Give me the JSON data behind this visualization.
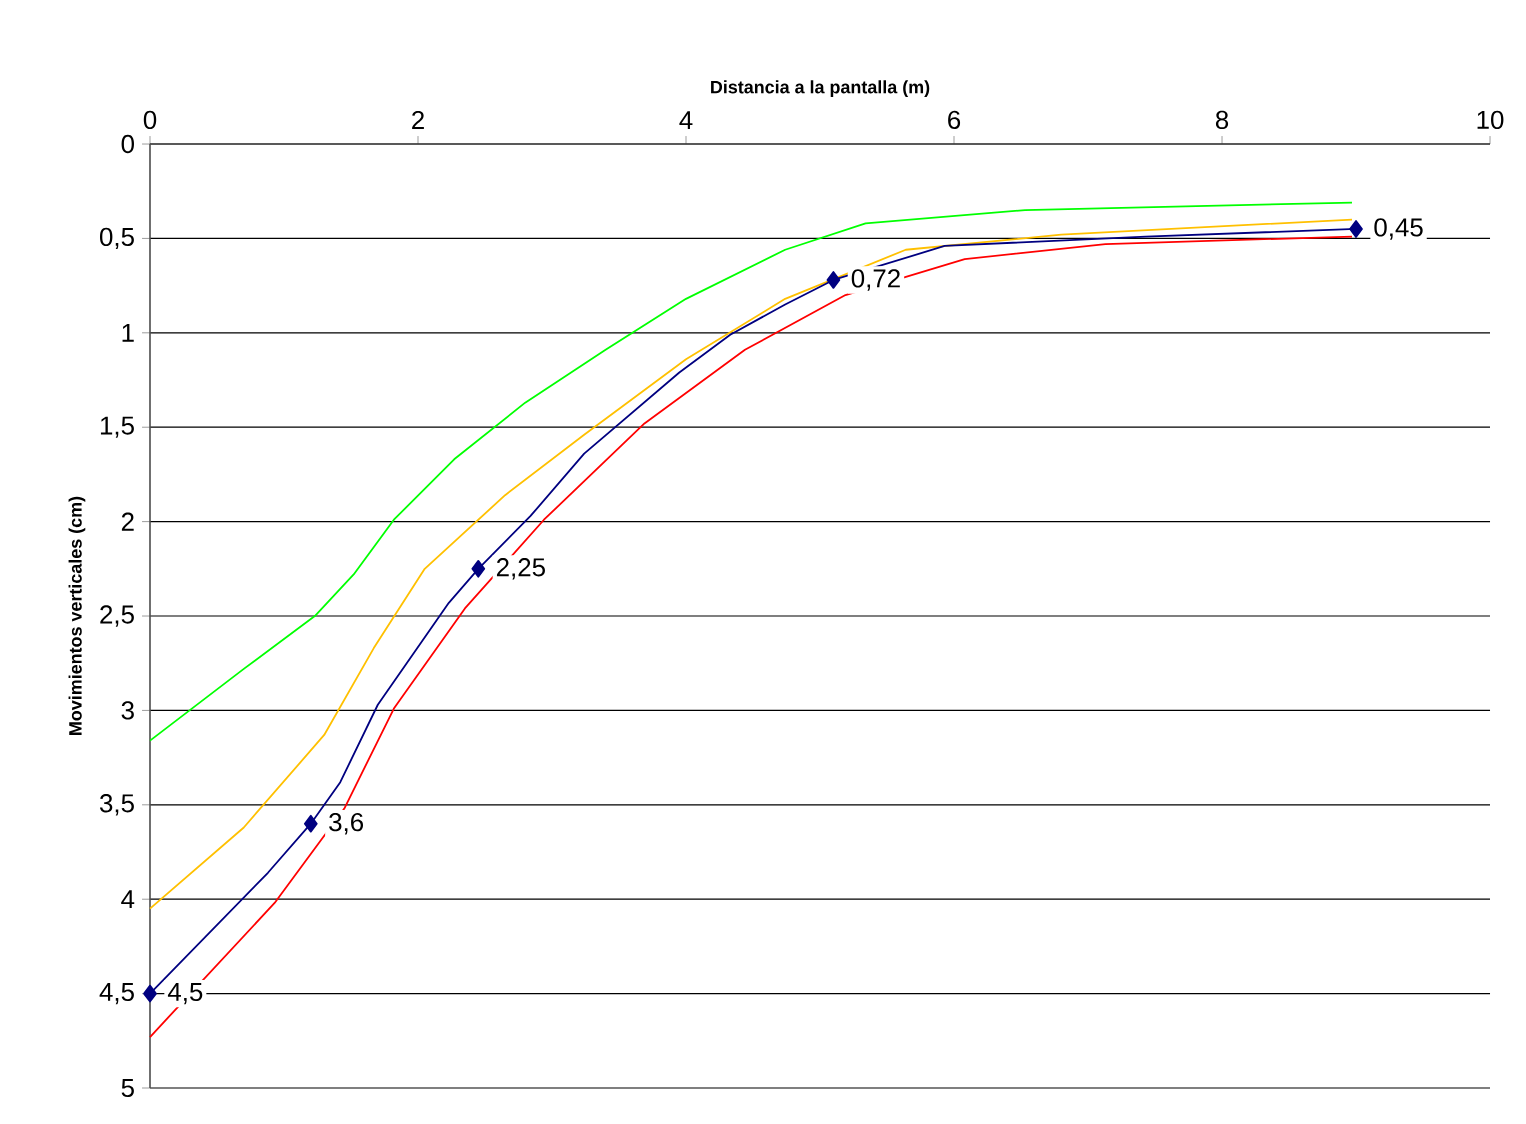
{
  "chart_data": {
    "type": "line",
    "xlabel": "Distancia a la pantalla (m)",
    "ylabel": "Movimientos verticales (cm)",
    "xlim": [
      0,
      10
    ],
    "xticks": [
      0,
      2,
      4,
      6,
      8,
      10
    ],
    "ylim": [
      5,
      0
    ],
    "yticks": [
      0,
      {
        "value": 0.5,
        "label": "0,5"
      },
      1,
      {
        "value": 1.5,
        "label": "1,5"
      },
      2,
      {
        "value": 2.5,
        "label": "2,5"
      },
      3,
      {
        "value": 3.5,
        "label": "3,5"
      },
      4,
      {
        "value": 4.5,
        "label": "4,5"
      },
      5
    ],
    "grid": "y",
    "series": [
      {
        "color": "#00ff00",
        "x": [
          0,
          0.7,
          1.23,
          1.52,
          1.82,
          2.27,
          2.8,
          3.4,
          4.0,
          4.74,
          5.34,
          6.53,
          7.73,
          8.97
        ],
        "values": [
          3.16,
          2.78,
          2.5,
          2.28,
          1.99,
          1.67,
          1.37,
          1.09,
          0.82,
          0.56,
          0.42,
          0.35,
          0.33,
          0.31
        ]
      },
      {
        "color": "#ffc000",
        "x": [
          0,
          0.7,
          1.3,
          1.67,
          2.05,
          2.65,
          3.24,
          4.0,
          4.74,
          5.64,
          6.8,
          8.97
        ],
        "values": [
          4.05,
          3.62,
          3.13,
          2.67,
          2.25,
          1.86,
          1.54,
          1.14,
          0.82,
          0.56,
          0.48,
          0.4
        ]
      },
      {
        "color": "#ff0000",
        "x": [
          0,
          0.93,
          1.45,
          1.82,
          2.35,
          2.94,
          3.69,
          4.44,
          5.19,
          6.08,
          7.13,
          8.97
        ],
        "values": [
          4.73,
          4.02,
          3.52,
          2.99,
          2.46,
          1.99,
          1.48,
          1.09,
          0.8,
          0.61,
          0.53,
          0.49
        ]
      },
      {
        "color": "#000080",
        "x": [
          0,
          0.88,
          1.2,
          1.42,
          1.7,
          2.23,
          2.45,
          2.84,
          3.24,
          3.95,
          4.33,
          4.74,
          5.1,
          5.93,
          7.43,
          9
        ],
        "values": [
          4.5,
          3.86,
          3.6,
          3.38,
          2.97,
          2.43,
          2.25,
          1.97,
          1.64,
          1.21,
          1.01,
          0.85,
          0.72,
          0.54,
          0.49,
          0.45
        ]
      },
      {
        "type": "scatter",
        "marker": "diamond",
        "color": "#000080",
        "x": [
          0,
          1.2,
          2.45,
          5.1,
          9
        ],
        "values": [
          4.5,
          3.6,
          2.25,
          0.72,
          0.45
        ],
        "value_labels": [
          "4,5",
          "3,6",
          "2,25",
          "0,72",
          "0,45"
        ]
      }
    ]
  }
}
